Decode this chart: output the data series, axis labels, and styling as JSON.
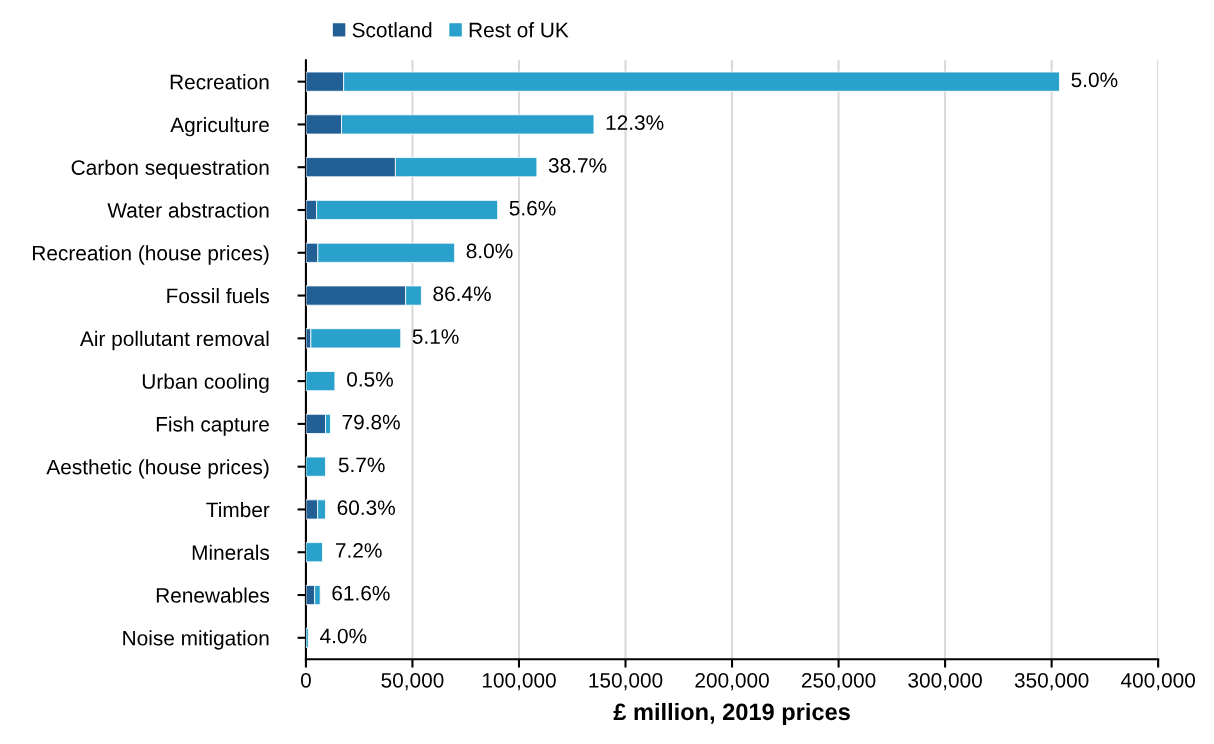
{
  "chart_data": {
    "type": "bar",
    "orientation": "horizontal",
    "stacked": true,
    "xlabel": "£ million, 2019 prices",
    "categories": [
      "Recreation",
      "Agriculture",
      "Carbon sequestration",
      "Water abstraction",
      "Recreation (house prices)",
      "Fossil fuels",
      "Air pollutant removal",
      "Urban cooling",
      "Fish capture",
      "Aesthetic (house prices)",
      "Timber",
      "Minerals",
      "Renewables",
      "Noise mitigation"
    ],
    "series": [
      {
        "name": "Scotland",
        "color": "#215f94",
        "values": [
          17700,
          16700,
          42000,
          5000,
          5600,
          46800,
          2300,
          null,
          9200,
          null,
          5500,
          null,
          4100,
          null
        ]
      },
      {
        "name": "Rest of UK",
        "color": "#29a1cc",
        "values": [
          336000,
          118500,
          66400,
          85000,
          64200,
          7400,
          42200,
          13600,
          2300,
          9200,
          3700,
          7800,
          2600,
          1100
        ]
      }
    ],
    "annotations": [
      {
        "text": "5.0%",
        "x": 353700,
        "y": "Recreation"
      },
      {
        "text": "12.3%",
        "x": 135200,
        "y": "Agriculture"
      },
      {
        "text": "38.7%",
        "x": 108400,
        "y": "Carbon sequestration"
      },
      {
        "text": "5.6%",
        "x": 90000,
        "y": "Water abstraction"
      },
      {
        "text": "8.0%",
        "x": 69800,
        "y": "Recreation (house prices)"
      },
      {
        "text": "86.4%",
        "x": 54200,
        "y": "Fossil fuels"
      },
      {
        "text": "5.1%",
        "x": 44500,
        "y": "Air pollutant removal"
      },
      {
        "text": "0.5%",
        "x": 13700,
        "y": "Urban cooling"
      },
      {
        "text": "79.8%",
        "x": 11500,
        "y": "Fish capture"
      },
      {
        "text": "5.7%",
        "x": 9800,
        "y": "Aesthetic (house prices)"
      },
      {
        "text": "60.3%",
        "x": 9200,
        "y": "Timber"
      },
      {
        "text": "7.2%",
        "x": 8400,
        "y": "Minerals"
      },
      {
        "text": "61.6%",
        "x": 6700,
        "y": "Renewables"
      },
      {
        "text": "4.0%",
        "x": 1200,
        "y": "Noise mitigation"
      }
    ],
    "xlim": [
      0,
      400000
    ],
    "xticks": [
      0,
      {
        "value": 50000,
        "label": "50,000"
      },
      {
        "value": 100000,
        "label": "100,000"
      },
      {
        "value": 150000,
        "label": "150,000"
      },
      {
        "value": 200000,
        "label": "200,000"
      },
      {
        "value": 250000,
        "label": "250,000"
      },
      {
        "value": 300000,
        "label": "300,000"
      },
      {
        "value": 350000,
        "label": "350,000"
      },
      {
        "value": 400000,
        "label": "400,000"
      }
    ],
    "grid": "x",
    "legend": "top"
  }
}
